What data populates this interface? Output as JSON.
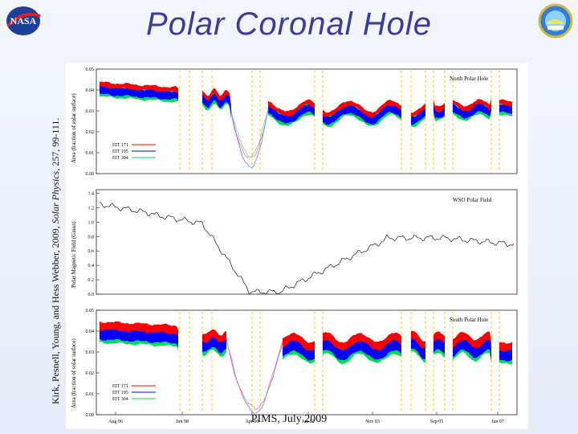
{
  "slide": {
    "title": "Polar Coronal Hole",
    "citation_prefix": "Kirk, Pesnell, Young, and Hess Webber, 2009, ",
    "citation_journal": "Solar Physics",
    "citation_suffix": ", 257, 99-111.",
    "footer": "PIMS, July 2009",
    "left_logo_icon": "nasa-meatball-logo",
    "right_logo_icon": "conference-emblem-logo"
  },
  "chart_data": [
    {
      "type": "area",
      "panel_label": "North Polar Hole",
      "ylabel": "Area (fraction of solar surface)",
      "ylim": [
        0,
        0.05
      ],
      "yticks": [
        "0.00",
        "0.01",
        "0.02",
        "0.03",
        "0.04",
        "0.05"
      ],
      "legend": [
        "EIT 171",
        "EIT 195",
        "EIT 304"
      ],
      "legend_placement": "bottom-left",
      "colors": {
        "eit171": "#ff0000",
        "eit195": "#0000ff",
        "eit304": "#00dd55"
      }
    },
    {
      "type": "line",
      "panel_label": "WSO Polar Field",
      "ylabel": "Polar Magnetic Field (Gauss)",
      "ylim": [
        0,
        1.45
      ],
      "yticks": [
        "0.0",
        "0.2",
        "0.4",
        "0.6",
        "0.8",
        "1.0",
        "1.2",
        "1.4"
      ]
    },
    {
      "type": "area",
      "panel_label": "South Polar Hole",
      "ylabel": "Area (fraction of solar surface)",
      "ylim": [
        0,
        0.05
      ],
      "yticks": [
        "0.00",
        "0.01",
        "0.02",
        "0.03",
        "0.04",
        "0.05"
      ],
      "legend": [
        "EIT 171",
        "EIT 195",
        "EIT 304"
      ],
      "legend_placement": "bottom-left",
      "xticks": [
        "Aug 96",
        "Jun 98",
        "Apr 00",
        "Jan 02",
        "Nov 03",
        "Sep 05",
        "Jun 07"
      ],
      "colors": {
        "eit171": "#ff0000",
        "eit195": "#0000ff",
        "eit304": "#00dd55"
      }
    }
  ]
}
